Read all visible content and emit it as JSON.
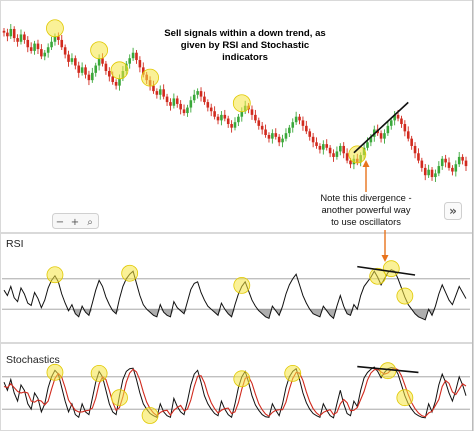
{
  "chart_data": [
    {
      "type": "candlestick",
      "panel": "price",
      "trend": "down",
      "title_lines": [
        "Sell signals within a down trend, as",
        "given by RSI and Stochastic",
        "indicators"
      ],
      "annotation_lines": [
        "Note this divergence -",
        "another powerful way",
        "to use oscillators"
      ],
      "colors": {
        "up": "#3aa83a",
        "down": "#d12a1e",
        "highlight": "#f5e642",
        "arrow": "#e8731c",
        "trendline": "#111111"
      },
      "zoom_controls": [
        "−",
        "+",
        "⌕"
      ],
      "nav_button": "»",
      "closes": [
        88,
        86,
        90,
        85,
        83,
        87,
        84,
        80,
        78,
        82,
        79,
        75,
        77,
        80,
        83,
        86,
        84,
        80,
        76,
        72,
        74,
        70,
        66,
        69,
        65,
        62,
        66,
        70,
        74,
        71,
        67,
        64,
        61,
        59,
        63,
        67,
        71,
        74,
        77,
        73,
        69,
        65,
        62,
        59,
        56,
        54,
        57,
        53,
        50,
        48,
        52,
        49,
        46,
        44,
        47,
        51,
        54,
        56,
        53,
        50,
        47,
        45,
        42,
        40,
        43,
        41,
        38,
        36,
        39,
        42,
        45,
        48,
        46,
        43,
        40,
        37,
        35,
        32,
        30,
        33,
        31,
        28,
        30,
        33,
        36,
        39,
        42,
        40,
        37,
        34,
        31,
        28,
        26,
        24,
        27,
        25,
        22,
        20,
        23,
        26,
        22,
        18,
        16,
        19,
        17,
        21,
        25,
        28,
        31,
        35,
        33,
        30,
        33,
        37,
        40,
        43,
        41,
        38,
        34,
        30,
        26,
        22,
        18,
        14,
        10,
        13,
        9,
        11,
        15,
        19,
        17,
        14,
        12,
        16,
        20,
        18,
        15
      ]
    },
    {
      "type": "line",
      "panel": "oscillator",
      "title": "RSI",
      "overbought": 70,
      "oversold": 30,
      "ylim": [
        0,
        100
      ],
      "series": [
        {
          "values": [
            55,
            48,
            60,
            45,
            40,
            58,
            50,
            38,
            35,
            52,
            44,
            32,
            42,
            58,
            68,
            74,
            66,
            50,
            38,
            28,
            36,
            24,
            20,
            34,
            26,
            22,
            38,
            55,
            68,
            60,
            46,
            36,
            28,
            24,
            44,
            60,
            70,
            76,
            80,
            64,
            48,
            36,
            30,
            26,
            22,
            20,
            36,
            26,
            22,
            20,
            40,
            32,
            28,
            24,
            40,
            56,
            64,
            66,
            52,
            42,
            34,
            30,
            26,
            22,
            38,
            30,
            24,
            20,
            36,
            50,
            60,
            66,
            54,
            42,
            34,
            28,
            24,
            20,
            18,
            34,
            28,
            22,
            34,
            50,
            62,
            70,
            76,
            62,
            48,
            38,
            30,
            24,
            22,
            20,
            34,
            28,
            22,
            18,
            34,
            48,
            34,
            24,
            22,
            36,
            30,
            48,
            60,
            66,
            72,
            80,
            72,
            62,
            70,
            78,
            82,
            80,
            70,
            58,
            46,
            36,
            30,
            24,
            20,
            18,
            16,
            30,
            22,
            34,
            50,
            62,
            52,
            42,
            36,
            48,
            60,
            52,
            44
          ]
        }
      ]
    },
    {
      "type": "line",
      "panel": "oscillator",
      "title": "Stochastics",
      "overbought": 80,
      "oversold": 20,
      "ylim": [
        0,
        100
      ],
      "series": [
        {
          "values": [
            70,
            55,
            75,
            50,
            35,
            65,
            55,
            30,
            20,
            50,
            40,
            15,
            30,
            60,
            80,
            92,
            85,
            60,
            35,
            15,
            30,
            10,
            5,
            30,
            15,
            10,
            40,
            70,
            90,
            80,
            55,
            30,
            15,
            10,
            45,
            75,
            90,
            95,
            96,
            75,
            50,
            30,
            20,
            12,
            8,
            5,
            30,
            15,
            8,
            5,
            40,
            25,
            15,
            10,
            35,
            65,
            85,
            92,
            70,
            45,
            30,
            20,
            12,
            8,
            35,
            20,
            10,
            5,
            30,
            60,
            80,
            90,
            70,
            45,
            28,
            18,
            10,
            6,
            5,
            30,
            18,
            8,
            30,
            60,
            80,
            90,
            95,
            75,
            50,
            32,
            20,
            12,
            8,
            5,
            30,
            18,
            8,
            4,
            30,
            55,
            30,
            12,
            8,
            35,
            25,
            55,
            78,
            88,
            94,
            98,
            90,
            78,
            88,
            95,
            97,
            96,
            85,
            65,
            45,
            30,
            20,
            12,
            8,
            5,
            4,
            30,
            15,
            35,
            65,
            85,
            70,
            50,
            35,
            55,
            80,
            65,
            45
          ]
        },
        {
          "values": [
            62,
            60,
            67,
            60,
            53,
            50,
            52,
            50,
            35,
            33,
            37,
            35,
            28,
            35,
            57,
            77,
            86,
            79,
            60,
            37,
            27,
            18,
            15,
            15,
            17,
            18,
            22,
            40,
            67,
            80,
            75,
            55,
            33,
            18,
            23,
            43,
            70,
            87,
            94,
            89,
            74,
            52,
            33,
            21,
            13,
            8,
            14,
            17,
            18,
            9,
            18,
            23,
            27,
            17,
            20,
            37,
            62,
            81,
            82,
            69,
            48,
            32,
            21,
            13,
            18,
            21,
            22,
            12,
            15,
            32,
            57,
            77,
            80,
            68,
            48,
            30,
            19,
            11,
            7,
            14,
            18,
            19,
            19,
            33,
            57,
            77,
            88,
            87,
            73,
            52,
            34,
            21,
            13,
            8,
            14,
            17,
            19,
            10,
            14,
            30,
            38,
            32,
            17,
            18,
            23,
            38,
            53,
            74,
            87,
            93,
            94,
            89,
            85,
            87,
            93,
            96,
            93,
            82,
            65,
            47,
            32,
            21,
            13,
            8,
            6,
            13,
            16,
            27,
            38,
            62,
            73,
            68,
            52,
            47,
            57,
            67,
            63
          ]
        }
      ]
    }
  ]
}
